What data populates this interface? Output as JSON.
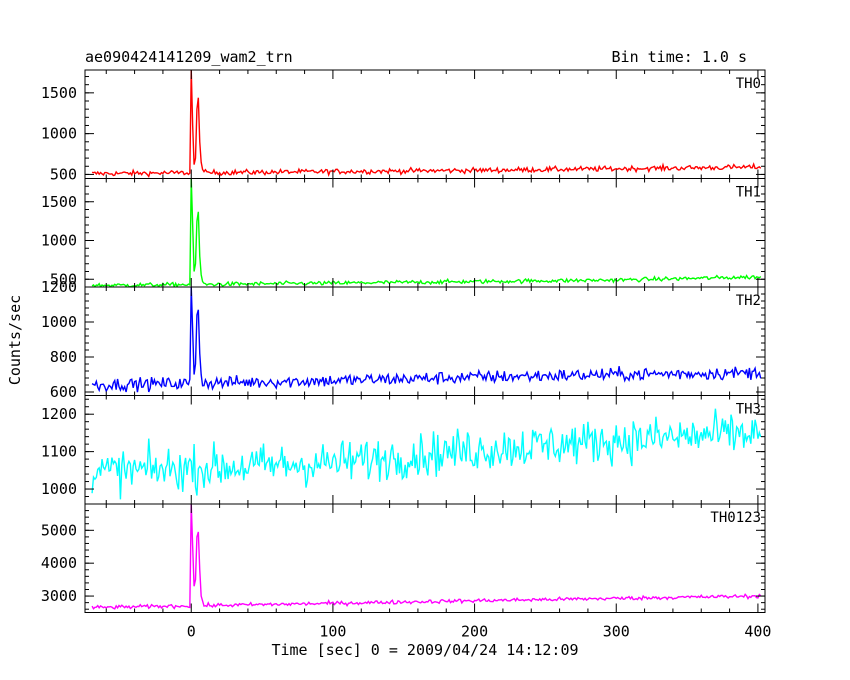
{
  "chart_data": {
    "type": "line",
    "title": "ae090424141209_wam2_trn",
    "subtitle": "Bin time: 1.0 s",
    "xlabel": "Time [sec] 0 = 2009/04/24 14:12:09",
    "ylabel": "Counts/sec",
    "xlim": [
      -75,
      405
    ],
    "x_ticks": [
      0,
      100,
      200,
      300,
      400
    ],
    "grid": false,
    "panels": [
      {
        "name": "TH0",
        "color": "#ff0000",
        "ylim": [
          450,
          1780
        ],
        "y_ticks": [
          500,
          1000,
          1500
        ],
        "baseline": [
          [
            -70,
            510
          ],
          [
            100,
            535
          ],
          [
            200,
            550
          ],
          [
            300,
            570
          ],
          [
            400,
            590
          ]
        ],
        "noise": 30,
        "burst": [
          [
            0,
            1780
          ],
          [
            1,
            1100
          ],
          [
            2,
            620
          ],
          [
            3,
            700
          ],
          [
            4,
            1300
          ],
          [
            5,
            1440
          ],
          [
            6,
            900
          ],
          [
            7,
            650
          ],
          [
            8,
            560
          ]
        ],
        "points": []
      },
      {
        "name": "TH1",
        "color": "#00ff00",
        "ylim": [
          400,
          1800
        ],
        "y_ticks": [
          500,
          1000,
          1500
        ],
        "baseline": [
          [
            -70,
            420
          ],
          [
            100,
            450
          ],
          [
            200,
            470
          ],
          [
            300,
            490
          ],
          [
            400,
            530
          ]
        ],
        "noise": 25,
        "burst": [
          [
            0,
            1800
          ],
          [
            1,
            1200
          ],
          [
            2,
            600
          ],
          [
            3,
            700
          ],
          [
            4,
            1250
          ],
          [
            5,
            1370
          ],
          [
            6,
            800
          ],
          [
            7,
            560
          ],
          [
            8,
            470
          ]
        ],
        "points": []
      },
      {
        "name": "TH2",
        "color": "#0000ff",
        "ylim": [
          580,
          1200
        ],
        "y_ticks": [
          600,
          800,
          1000,
          1200
        ],
        "baseline": [
          [
            -70,
            640
          ],
          [
            100,
            665
          ],
          [
            200,
            685
          ],
          [
            300,
            700
          ],
          [
            400,
            710
          ]
        ],
        "noise": 35,
        "burst": [
          [
            0,
            1200
          ],
          [
            1,
            950
          ],
          [
            2,
            700
          ],
          [
            3,
            760
          ],
          [
            4,
            1040
          ],
          [
            5,
            1070
          ],
          [
            6,
            820
          ],
          [
            7,
            700
          ]
        ],
        "points": []
      },
      {
        "name": "TH3",
        "color": "#00ffff",
        "ylim": [
          960,
          1250
        ],
        "y_ticks": [
          1000,
          1100,
          1200
        ],
        "baseline": [
          [
            -70,
            1045
          ],
          [
            100,
            1070
          ],
          [
            200,
            1105
          ],
          [
            300,
            1130
          ],
          [
            400,
            1150
          ]
        ],
        "noise": 55,
        "burst": [],
        "points": []
      },
      {
        "name": "TH0123",
        "color": "#ff00ff",
        "ylim": [
          2500,
          5800
        ],
        "y_ticks": [
          3000,
          4000,
          5000
        ],
        "baseline": [
          [
            -70,
            2650
          ],
          [
            100,
            2780
          ],
          [
            200,
            2860
          ],
          [
            300,
            2930
          ],
          [
            400,
            3000
          ]
        ],
        "noise": 55,
        "burst": [
          [
            0,
            5800
          ],
          [
            1,
            4500
          ],
          [
            2,
            3300
          ],
          [
            3,
            3500
          ],
          [
            4,
            4800
          ],
          [
            5,
            4950
          ],
          [
            6,
            3800
          ],
          [
            7,
            3000
          ],
          [
            8,
            2850
          ]
        ],
        "points": []
      }
    ]
  }
}
